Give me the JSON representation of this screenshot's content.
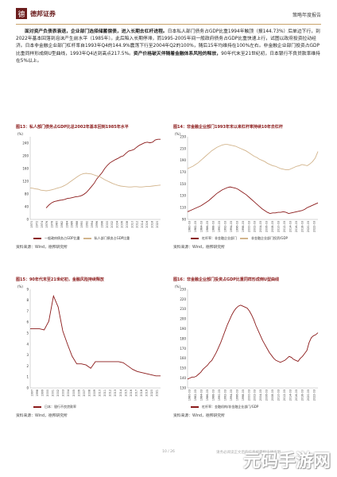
{
  "header": {
    "brand": "德邦证券",
    "logo_glyph": "德",
    "report_type": "策略年度报告"
  },
  "body_text": {
    "lead": "面对资产负债表衰退，企业部门选择储蓄偿债，进入长期去杠杆进程。",
    "rest": "日本私人部门债务占GDP比重1994年触顶（报144.73%）后单边下行，到2022年基本回落到泡沫产生前水平（1985年）。此后陷入长期停滞，而1995-2005年间一般政府债务占GDP比重快速上行，试图以政府投资拉动经济。日本非金融企业部门杠杆率自1993年Q4的144.9%震荡下行至2004年Q2的100%，随后15年均维持在100%左右。非金融企业部门投资占GDP比重同样形成倒U型曲线，1993年Q4达到高点217.5%。",
    "bold2": "资产价格破灭伴随着金融体系风险的释放，",
    "tail": "90年代末至21世纪初，日本银行不良贷款率维持在5%以上。"
  },
  "charts": [
    {
      "caption": "图13：私人部门债务占GDP比总2002年基本回到1985年水平",
      "source": "资料来源：Wind，德邦研究所",
      "chart_data": {
        "type": "line",
        "unit": "(%)",
        "ylim": [
          0,
          260
        ],
        "yticks": [
          0,
          40,
          80,
          120,
          160,
          200,
          240
        ],
        "x_labels": [
          "1970",
          "1972",
          "1974",
          "1976",
          "1978",
          "1980",
          "1982",
          "1984",
          "1986",
          "1988",
          "1990",
          "1992",
          "1994",
          "1996",
          "1998",
          "2000",
          "2002",
          "2004",
          "2006",
          "2008",
          "2010",
          "2012",
          "2014",
          "2016",
          "2018",
          "2020"
        ],
        "series": [
          {
            "name": "一般政府债务占GDP比重",
            "color": "#8b1a1a",
            "values": [
              null,
              null,
              null,
              null,
              null,
              null,
              36,
              45,
              52,
              56,
              58,
              60,
              61,
              63,
              66,
              67,
              69,
              71,
              72,
              74,
              78,
              84,
              93,
              103,
              113,
              127,
              137,
              147,
              160,
              170,
              178,
              183,
              188,
              192,
              197,
              200,
              208,
              215,
              217,
              220,
              227,
              233,
              237,
              241,
              243,
              241,
              243,
              250,
              252,
              252
            ]
          },
          {
            "name": "私人部门债务占GDP比重",
            "color": "#d2b48c",
            "values": [
              99,
              98,
              96,
              95,
              92,
              91,
              90,
              91,
              93,
              95,
              98,
              100,
              103,
              107,
              112,
              118,
              124,
              130,
              136,
              141,
              144,
              145,
              144,
              143,
              140,
              137,
              135,
              130,
              125,
              121,
              117,
              113,
              110,
              107,
              105,
              104,
              103,
              102,
              102,
              103,
              103,
              102,
              102,
              103,
              104,
              104,
              105,
              106,
              107,
              108
            ]
          }
        ]
      }
    },
    {
      "caption": "图14：非金融企业部门1993年末以来杠杆率持续10年去杠杆",
      "source": "资料来源：Wind，德邦研究所",
      "chart_data": {
        "type": "line",
        "unit": "(%)",
        "ylim": [
          90,
          230
        ],
        "yticks": [
          90,
          110,
          130,
          150,
          170,
          190,
          210,
          230
        ],
        "x_labels": [
          "1980-03",
          "1982-03",
          "1984-03",
          "1986-03",
          "1988-03",
          "1990-03",
          "1992-03",
          "1994-03",
          "1996-03",
          "1998-03",
          "2000-03",
          "2002-03",
          "2004-03",
          "2006-03",
          "2008-03",
          "2010-03",
          "2012-03",
          "2014-03",
          "2016-03",
          "2018-03",
          "2020-03",
          "2022-03"
        ],
        "series": [
          {
            "name": "杠杆率：非金融企业部门",
            "color": "#8b1a1a",
            "values": [
              103,
              105,
              107,
              109,
              111,
              113,
              116,
              119,
              122,
              126,
              130,
              134,
              137,
              140,
              142,
              144,
              145,
              144,
              143,
              141,
              138,
              135,
              132,
              128,
              124,
              120,
              116,
              112,
              108,
              105,
              102,
              100,
              101,
              101,
              102,
              102,
              103,
              102,
              100,
              101,
              102,
              103,
              104,
              105,
              107,
              110,
              112,
              114,
              116,
              118
            ]
          },
          {
            "name": "非金融企业部门投资/GDP",
            "color": "#d2b48c",
            "values": [
              176,
              178,
              180,
              183,
              186,
              190,
              194,
              198,
              202,
              206,
              209,
              212,
              214,
              216,
              217,
              217,
              216,
              215,
              214,
              212,
              210,
              208,
              206,
              203,
              200,
              197,
              195,
              192,
              190,
              188,
              185,
              183,
              181,
              180,
              178,
              176,
              175,
              174,
              174,
              176,
              178,
              180,
              181,
              183,
              182,
              181,
              184,
              188,
              194,
              205
            ]
          }
        ]
      }
    },
    {
      "caption": "图15：90年代末至21世纪初，金融风险持续释放",
      "source": "资料来源：Wind，德邦研究所",
      "chart_data": {
        "type": "line",
        "unit": "(%)",
        "ylim": [
          0,
          9
        ],
        "yticks": [
          0,
          1,
          2,
          3,
          4,
          5,
          6,
          7,
          8,
          9
        ],
        "x_labels": [
          "1997",
          "1998",
          "1999",
          "2000",
          "2001",
          "2002",
          "2003",
          "2004",
          "2005",
          "2006",
          "2007",
          "2008",
          "2009",
          "2010",
          "2011",
          "2012",
          "2013",
          "2014",
          "2015",
          "2016",
          "2017",
          "2018",
          "2019",
          "2020",
          "2021"
        ],
        "series": [
          {
            "name": "日本：银行不良贷款率",
            "color": "#8b1a1a",
            "values": [
              5.4,
              5.4,
              5.4,
              5.3,
              6.1,
              8.4,
              7.4,
              5.2,
              4.0,
              2.9,
              2.2,
              2.2,
              2.1,
              1.8,
              2.4,
              2.4,
              2.4,
              2.4,
              2.4,
              2.4,
              2.3,
              2.0,
              1.7,
              1.5,
              1.4,
              1.3,
              1.2,
              1.1,
              1.1
            ]
          }
        ]
      }
    },
    {
      "caption": "图16：非金融企业部门投资占GDP比重同样形成倒U型曲线",
      "source": "资料来源：Wind，德邦研究所",
      "chart_data": {
        "type": "line",
        "unit": "(%)",
        "ylim": [
          130,
          230
        ],
        "yticks": [
          130,
          140,
          150,
          160,
          170,
          180,
          190,
          200,
          210,
          220,
          230
        ],
        "x_labels": [
          "1980-03",
          "1982-03",
          "1984-03",
          "1986-03",
          "1988-03",
          "1990-03",
          "1992-03",
          "1994-03",
          "1996-03",
          "1998-03",
          "2000-03",
          "2002-03",
          "2004-03",
          "2006-03",
          "2008-03",
          "2010-03",
          "2012-03",
          "2014-03",
          "2016-03",
          "2018-03",
          "2020-03",
          "2022-03"
        ],
        "series": [
          {
            "name": "杠杆率：金融机构/非金融企业部门/GDP",
            "color": "#8b1a1a",
            "values": [
              139,
              140,
              141,
              141,
              142,
              144,
              146,
              149,
              151,
              153,
              156,
              158,
              162,
              166,
              171,
              176,
              182,
              188,
              194,
              199,
              204,
              208,
              211,
              213,
              214,
              213,
              212,
              211,
              208,
              204,
              199,
              193,
              188,
              183,
              178,
              174,
              170,
              166,
              163,
              160,
              158,
              157,
              156,
              157,
              158,
              160,
              162,
              161,
              159,
              158,
              157,
              160,
              162,
              165,
              168,
              176,
              181,
              183,
              184,
              186
            ]
          }
        ]
      }
    }
  ],
  "footer": {
    "page": "10 / 26",
    "note": "请务必阅读正文后的信息披露和法律声明"
  },
  "watermark": "元码手游网"
}
